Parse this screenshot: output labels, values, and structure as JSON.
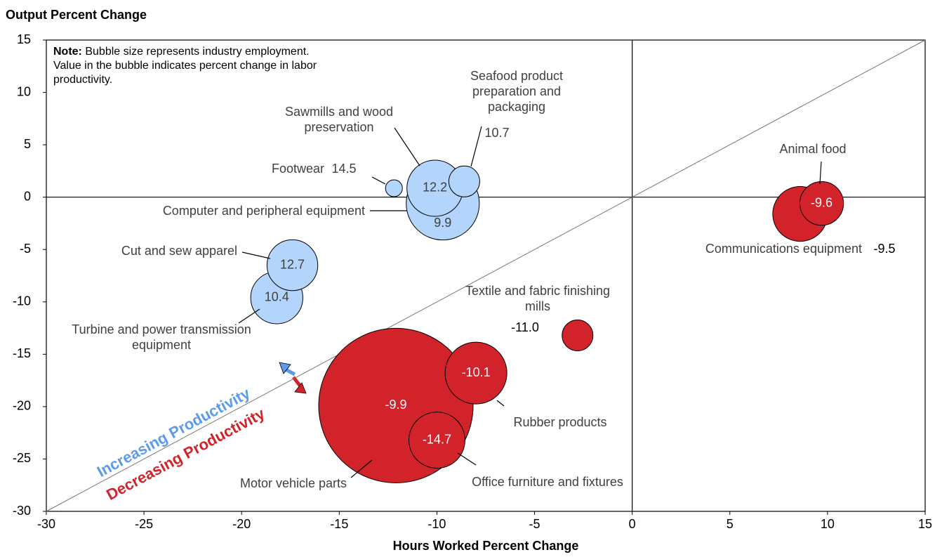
{
  "chart_data": {
    "type": "bubble",
    "title": "Output Percent Change",
    "x_label": "Hours Worked Percent Change",
    "note_label": "Note:",
    "note": "Bubble size represents industry employment. Value in the bubble indicates percent change in labor productivity.",
    "xlim": [
      -30,
      15
    ],
    "ylim": [
      -30,
      15
    ],
    "xticks": [
      -30,
      -25,
      -20,
      -15,
      -10,
      -5,
      0,
      5,
      10,
      15
    ],
    "yticks": [
      -30,
      -25,
      -20,
      -15,
      -10,
      -5,
      0,
      5,
      10,
      15
    ],
    "series": [
      {
        "name": "Increasing Productivity",
        "color": "#b3d4fb",
        "label_color": "#5b9bea",
        "labels": [
          "Footwear",
          "Computer and peripheral equipment",
          "Sawmills and wood preservation",
          "Seafood product preparation and packaging",
          "Turbine and power transmission equipment",
          "Cut and sew apparel"
        ],
        "x": [
          -12.2,
          -9.7,
          -10.1,
          -8.6,
          -18.2,
          -17.4
        ],
        "values": [
          0.85,
          -0.6,
          0.85,
          1.5,
          -9.6,
          -6.5
        ],
        "sizes": [
          6,
          112,
          66,
          20,
          57,
          54
        ],
        "productivity": [
          14.5,
          9.9,
          12.2,
          10.7,
          10.4,
          12.7
        ],
        "productivity_labels": [
          "14.5",
          "9.9",
          "12.2",
          "10.7",
          "10.4",
          "12.7"
        ]
      },
      {
        "name": "Decreasing Productivity",
        "color": "#d2232a",
        "label_color": "#d2232a",
        "labels": [
          "Motor vehicle parts",
          "Rubber products",
          "Office furniture and fixtures",
          "Textile and fabric finishing mills",
          "Communications equipment",
          "Animal food"
        ],
        "x": [
          -12.1,
          -8.0,
          -10.0,
          -2.8,
          8.6,
          9.7
        ],
        "values": [
          -19.9,
          -16.8,
          -23.2,
          -13.2,
          -1.6,
          -0.6
        ],
        "sizes": [
          500,
          80,
          66,
          20,
          63,
          40
        ],
        "productivity": [
          -9.9,
          -10.1,
          -14.7,
          -11.0,
          -9.5,
          -9.6
        ],
        "productivity_labels": [
          "-9.9",
          "-10.1",
          "-14.7",
          "-11.0",
          "-9.5",
          "-9.6"
        ]
      }
    ]
  }
}
